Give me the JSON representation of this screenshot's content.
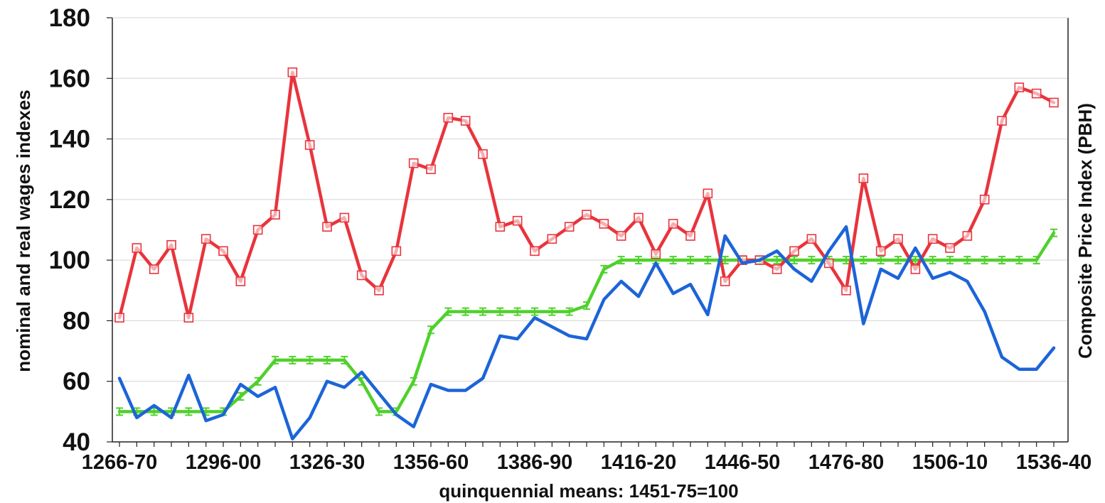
{
  "chart_data": {
    "type": "line",
    "title": "",
    "xlabel": "quinquennial means: 1451-75=100",
    "ylabel": "nominal and real wages indexes",
    "y2label": "Composite Price Index (PBH)",
    "ylim": [
      40,
      180
    ],
    "yticks": [
      40,
      60,
      80,
      100,
      120,
      140,
      160,
      180
    ],
    "grid": true,
    "legend": "none",
    "x_tick_labels": [
      "1266-70",
      "1296-00",
      "1326-30",
      "1356-60",
      "1386-90",
      "1416-20",
      "1446-50",
      "1476-80",
      "1506-10",
      "1536-40"
    ],
    "x": [
      1266,
      1271,
      1276,
      1281,
      1286,
      1291,
      1296,
      1301,
      1306,
      1311,
      1316,
      1321,
      1326,
      1331,
      1336,
      1341,
      1346,
      1351,
      1356,
      1361,
      1366,
      1371,
      1376,
      1381,
      1386,
      1391,
      1396,
      1401,
      1406,
      1411,
      1416,
      1421,
      1426,
      1431,
      1436,
      1441,
      1446,
      1451,
      1456,
      1461,
      1466,
      1471,
      1476,
      1481,
      1486,
      1491,
      1496,
      1501,
      1506,
      1511,
      1516,
      1521,
      1526,
      1531,
      1536
    ],
    "series": [
      {
        "color": "#e8343c",
        "marker": "square",
        "values": [
          81,
          104,
          97,
          105,
          81,
          107,
          103,
          93,
          110,
          115,
          162,
          138,
          111,
          114,
          95,
          90,
          103,
          132,
          130,
          147,
          146,
          135,
          111,
          113,
          103,
          107,
          111,
          115,
          112,
          108,
          114,
          102,
          112,
          108,
          122,
          93,
          100,
          100,
          97,
          103,
          107,
          99,
          90,
          127,
          103,
          107,
          97,
          107,
          104,
          108,
          120,
          146,
          157,
          155,
          152
        ]
      },
      {
        "color": "#1c64d8",
        "marker": "none",
        "values": [
          61,
          48,
          52,
          48,
          62,
          47,
          49,
          59,
          55,
          58,
          41,
          48,
          60,
          58,
          63,
          56,
          49,
          45,
          59,
          57,
          57,
          61,
          75,
          74,
          81,
          78,
          75,
          74,
          87,
          93,
          88,
          99,
          89,
          92,
          82,
          108,
          99,
          100,
          103,
          97,
          93,
          103,
          111,
          79,
          97,
          94,
          104,
          94,
          96,
          93,
          83,
          68,
          64,
          64,
          71
        ]
      },
      {
        "color": "#4fd12b",
        "marker": "tick",
        "values": [
          50,
          50,
          50,
          50,
          50,
          50,
          50,
          55,
          60,
          67,
          67,
          67,
          67,
          67,
          60,
          50,
          50,
          60,
          77,
          83,
          83,
          83,
          83,
          83,
          83,
          83,
          83,
          85,
          97,
          100,
          100,
          100,
          100,
          100,
          100,
          100,
          100,
          100,
          100,
          100,
          100,
          100,
          100,
          100,
          100,
          100,
          100,
          100,
          100,
          100,
          100,
          100,
          100,
          100,
          109
        ]
      }
    ]
  }
}
